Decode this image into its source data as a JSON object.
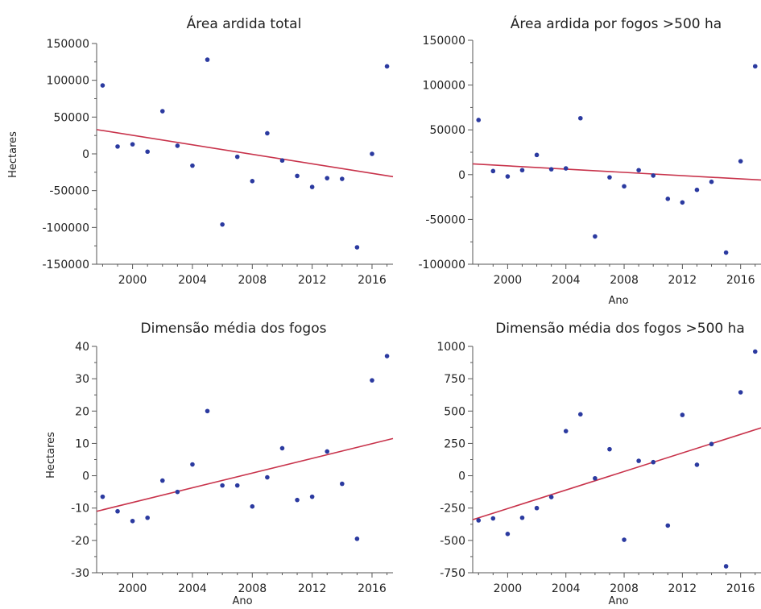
{
  "colors": {
    "points": "#2b3aa0",
    "trend": "#c8334b",
    "axis": "#555555",
    "text": "#222222"
  },
  "chart_data": [
    {
      "type": "scatter",
      "title": "Área ardida total",
      "xlabel": "",
      "ylabel": "Hectares",
      "xlim": [
        1997.6,
        2017.4
      ],
      "ylim": [
        -150000,
        150000
      ],
      "xticks": [
        2000,
        2004,
        2008,
        2012,
        2016
      ],
      "xtick_labels": [
        "2000",
        "2004",
        "2008",
        "2012",
        "2016"
      ],
      "yticks": [
        -150000,
        -100000,
        -50000,
        0,
        50000,
        100000,
        150000
      ],
      "ytick_labels": [
        "-150000",
        "-100000",
        "-50000",
        "0",
        "50000",
        "100000",
        "150000"
      ],
      "x": [
        1998,
        1999,
        2000,
        2001,
        2002,
        2003,
        2004,
        2005,
        2006,
        2007,
        2008,
        2009,
        2010,
        2011,
        2012,
        2013,
        2014,
        2015,
        2016,
        2017
      ],
      "y": [
        93000,
        10000,
        13000,
        3000,
        58000,
        11000,
        -16000,
        128000,
        -96000,
        -4000,
        -37000,
        28000,
        -9000,
        -30000,
        -45000,
        -33000,
        -34000,
        -127000,
        0,
        119000
      ],
      "trend": [
        [
          1997.6,
          33000
        ],
        [
          2017.4,
          -31000
        ]
      ],
      "grid": false
    },
    {
      "type": "scatter",
      "title": "Área ardida por fogos >500 ha",
      "xlabel": "Ano",
      "ylabel": "",
      "xlim": [
        1997.6,
        2017.4
      ],
      "ylim": [
        -100000,
        150000
      ],
      "xticks": [
        2000,
        2004,
        2008,
        2012,
        2016
      ],
      "xtick_labels": [
        "2000",
        "2004",
        "2008",
        "2012",
        "2016"
      ],
      "yticks": [
        -100000,
        -50000,
        0,
        50000,
        100000,
        150000
      ],
      "ytick_labels": [
        "-100000",
        "-50000",
        "0",
        "50000",
        "100000",
        "150000"
      ],
      "x": [
        1998,
        1999,
        2000,
        2001,
        2002,
        2003,
        2004,
        2005,
        2006,
        2007,
        2008,
        2009,
        2010,
        2011,
        2012,
        2013,
        2014,
        2015,
        2016,
        2017
      ],
      "y": [
        61000,
        4000,
        -2000,
        5000,
        22000,
        6000,
        7000,
        63000,
        -69000,
        -3000,
        -13000,
        5000,
        -1000,
        -27000,
        -31000,
        -17000,
        -8000,
        -87000,
        15000,
        121000
      ],
      "trend": [
        [
          1997.6,
          12000
        ],
        [
          2017.4,
          -6000
        ]
      ],
      "grid": false
    },
    {
      "type": "scatter",
      "title": "Dimensão média dos fogos",
      "xlabel": "Ano",
      "ylabel": "Hectares",
      "xlim": [
        1997.6,
        2017.4
      ],
      "ylim": [
        -30,
        40
      ],
      "xticks": [
        2000,
        2004,
        2008,
        2012,
        2016
      ],
      "xtick_labels": [
        "2000",
        "2004",
        "2008",
        "2012",
        "2016"
      ],
      "yticks": [
        -30,
        -20,
        -10,
        0,
        10,
        20,
        30,
        40
      ],
      "ytick_labels": [
        "-30",
        "-20",
        "-10",
        "0",
        "10",
        "20",
        "30",
        "40"
      ],
      "x": [
        1998,
        1999,
        2000,
        2001,
        2002,
        2003,
        2004,
        2005,
        2006,
        2007,
        2008,
        2009,
        2010,
        2011,
        2012,
        2013,
        2014,
        2015,
        2016,
        2017
      ],
      "y": [
        -6.5,
        -11,
        -14,
        -13,
        -1.5,
        -5,
        3.5,
        20,
        -3,
        -3,
        -9.5,
        -0.5,
        8.5,
        -7.5,
        -6.5,
        7.5,
        -2.5,
        -19.5,
        29.5,
        37
      ],
      "trend": [
        [
          1997.6,
          -11
        ],
        [
          2017.4,
          11.5
        ]
      ],
      "grid": false
    },
    {
      "type": "scatter",
      "title": "Dimensão média dos fogos >500 ha",
      "xlabel": "Ano",
      "ylabel": "",
      "xlim": [
        1997.6,
        2017.4
      ],
      "ylim": [
        -750,
        1000
      ],
      "xticks": [
        2000,
        2004,
        2008,
        2012,
        2016
      ],
      "xtick_labels": [
        "2000",
        "2004",
        "2008",
        "2012",
        "2016"
      ],
      "yticks": [
        -750,
        -500,
        -250,
        0,
        250,
        500,
        750,
        1000
      ],
      "ytick_labels": [
        "-750",
        "-500",
        "-250",
        "0",
        "250",
        "500",
        "750",
        "1000"
      ],
      "x": [
        1998,
        1999,
        2000,
        2001,
        2002,
        2003,
        2004,
        2005,
        2006,
        2007,
        2008,
        2009,
        2010,
        2011,
        2012,
        2013,
        2014,
        2015,
        2016,
        2017
      ],
      "y": [
        -345,
        -330,
        -450,
        -325,
        -250,
        -165,
        345,
        475,
        -20,
        205,
        -495,
        115,
        105,
        -385,
        470,
        85,
        245,
        -700,
        645,
        960
      ],
      "trend": [
        [
          1997.6,
          -340
        ],
        [
          2017.4,
          370
        ]
      ],
      "grid": false
    }
  ]
}
